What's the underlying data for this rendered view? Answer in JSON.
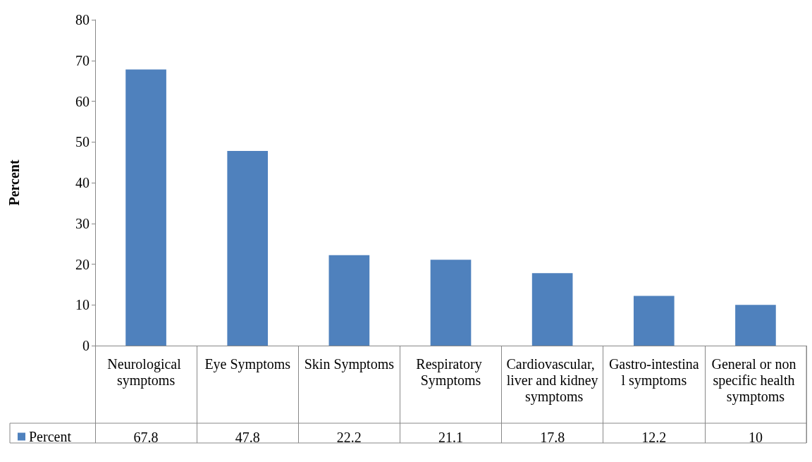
{
  "chart_data": {
    "type": "bar",
    "ylabel": "Percent",
    "categories": [
      "Neurological symptoms",
      "Eye Symptoms",
      "Skin Symptoms",
      "Respiratory Symptoms",
      "Cardiovascular, liver and kidney symptoms",
      "Gastro-intestinal symptoms",
      "General or non specific health symptoms"
    ],
    "series": [
      {
        "name": "Percent",
        "color": "#4f81bd",
        "values": [
          67.8,
          47.8,
          22.2,
          21.1,
          17.8,
          12.2,
          10
        ]
      }
    ],
    "ylim": [
      0,
      80
    ],
    "yticks": [
      0,
      10,
      20,
      30,
      40,
      50,
      60,
      70,
      80
    ],
    "grid": false,
    "legend": "bottom left",
    "data_labels": true
  }
}
